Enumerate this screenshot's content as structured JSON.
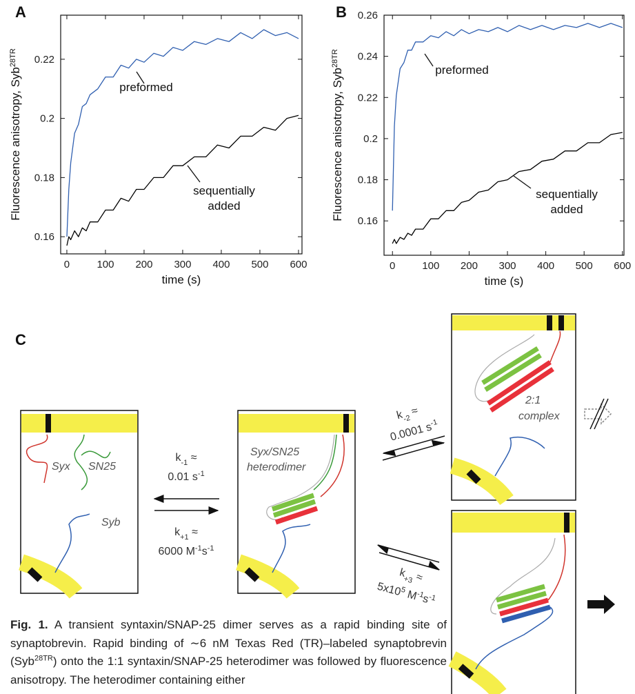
{
  "chart_data": [
    {
      "type": "line",
      "panel": "A",
      "x_label": "time (s)",
      "y_label": "Fluorescence anisotropy, Syb",
      "y_label_sup": "28TR",
      "x": [
        0,
        5,
        10,
        20,
        30,
        40,
        50,
        60,
        80,
        100,
        120,
        140,
        160,
        180,
        200,
        225,
        250,
        275,
        300,
        330,
        360,
        390,
        420,
        450,
        480,
        510,
        540,
        570,
        600
      ],
      "xlim": [
        -16,
        609
      ],
      "xticks": [
        0,
        100,
        200,
        300,
        400,
        500,
        600
      ],
      "ylim": [
        0.1542,
        0.2349
      ],
      "yticks": [
        0.16,
        0.18,
        0.2,
        0.22
      ],
      "series": [
        {
          "color": "#2f5fb0",
          "values": [
            0.16,
            0.176,
            0.185,
            0.195,
            0.198,
            0.204,
            0.205,
            0.208,
            0.21,
            0.214,
            0.214,
            0.218,
            0.217,
            0.22,
            0.219,
            0.222,
            0.221,
            0.224,
            0.223,
            0.226,
            0.225,
            0.227,
            0.226,
            0.229,
            0.227,
            0.23,
            0.228,
            0.229,
            0.227
          ]
        },
        {
          "color": "#000000",
          "values": [
            0.157,
            0.16,
            0.159,
            0.162,
            0.16,
            0.163,
            0.162,
            0.165,
            0.165,
            0.169,
            0.169,
            0.173,
            0.172,
            0.176,
            0.176,
            0.18,
            0.18,
            0.184,
            0.184,
            0.187,
            0.187,
            0.191,
            0.19,
            0.194,
            0.194,
            0.197,
            0.196,
            0.2,
            0.201
          ]
        }
      ],
      "annotations": [
        {
          "lines": [
            "preformed"
          ],
          "color": "#2f5fb0"
        },
        {
          "lines": [
            "sequentially",
            "added"
          ],
          "color": "#000000"
        }
      ]
    },
    {
      "type": "line",
      "panel": "B",
      "x_label": "time (s)",
      "y_label": "Fluorescence anisotropy, Syb",
      "y_label_sup": "28TR",
      "x": [
        0,
        5,
        10,
        20,
        30,
        40,
        50,
        60,
        80,
        100,
        120,
        140,
        160,
        180,
        200,
        225,
        250,
        275,
        300,
        330,
        360,
        390,
        420,
        450,
        480,
        510,
        540,
        570,
        600
      ],
      "xlim": [
        -22,
        604
      ],
      "xticks": [
        0,
        100,
        200,
        300,
        400,
        500,
        600
      ],
      "ylim": [
        0.1433,
        0.26
      ],
      "yticks": [
        0.16,
        0.18,
        0.2,
        0.22,
        0.24,
        0.26
      ],
      "series": [
        {
          "color": "#2f5fb0",
          "values": [
            0.165,
            0.206,
            0.221,
            0.234,
            0.237,
            0.243,
            0.243,
            0.247,
            0.247,
            0.25,
            0.249,
            0.252,
            0.25,
            0.253,
            0.251,
            0.253,
            0.252,
            0.254,
            0.252,
            0.255,
            0.253,
            0.255,
            0.253,
            0.255,
            0.254,
            0.256,
            0.254,
            0.256,
            0.254
          ]
        },
        {
          "color": "#000000",
          "values": [
            0.149,
            0.151,
            0.149,
            0.152,
            0.151,
            0.154,
            0.153,
            0.156,
            0.156,
            0.161,
            0.161,
            0.165,
            0.165,
            0.169,
            0.17,
            0.174,
            0.175,
            0.179,
            0.18,
            0.184,
            0.185,
            0.189,
            0.19,
            0.194,
            0.194,
            0.198,
            0.198,
            0.202,
            0.203
          ]
        }
      ],
      "annotations": [
        {
          "lines": [
            "preformed"
          ],
          "color": "#2f5fb0"
        },
        {
          "lines": [
            "sequentially",
            "added"
          ],
          "color": "#000000"
        }
      ]
    }
  ],
  "diagram": {
    "panel": "C",
    "box1": {
      "syx": "Syx",
      "sn25": "SN25",
      "syb": "Syb"
    },
    "box2": {
      "lines": [
        "Syx/SN25",
        "heterodimer"
      ]
    },
    "box3": {
      "lines": [
        "2:1",
        "complex"
      ]
    },
    "rates": [
      {
        "line1": [
          "k",
          "-1",
          " ≈"
        ],
        "line2": [
          "0.01 s",
          "-1"
        ]
      },
      {
        "line1": [
          "k",
          "+1",
          " ≈"
        ],
        "line2": [
          "6000 M",
          "-1",
          "s",
          "-1"
        ]
      },
      {
        "line1": [
          "k",
          "-2",
          " ≈"
        ],
        "line2": [
          "0.0001 s",
          "-1"
        ]
      },
      {
        "line1": [
          "k",
          "+3",
          " ≈"
        ],
        "line2": [
          "5x10",
          "5",
          " M",
          "-1",
          "s",
          "-1"
        ]
      }
    ]
  },
  "caption": {
    "label": "Fig. 1.",
    "text1": "A transient syntaxin/SNAP-25 dimer serves as a rapid binding site of synaptobrevin. Rapid binding of ∼6 nM Texas Red (TR)–labeled synaptobrevin (Syb",
    "sup": "28TR",
    "text2": ") onto the 1:1 syntaxin/SNAP-25 heterodimer was followed by fluorescence anisotropy. The heterodimer containing either"
  }
}
